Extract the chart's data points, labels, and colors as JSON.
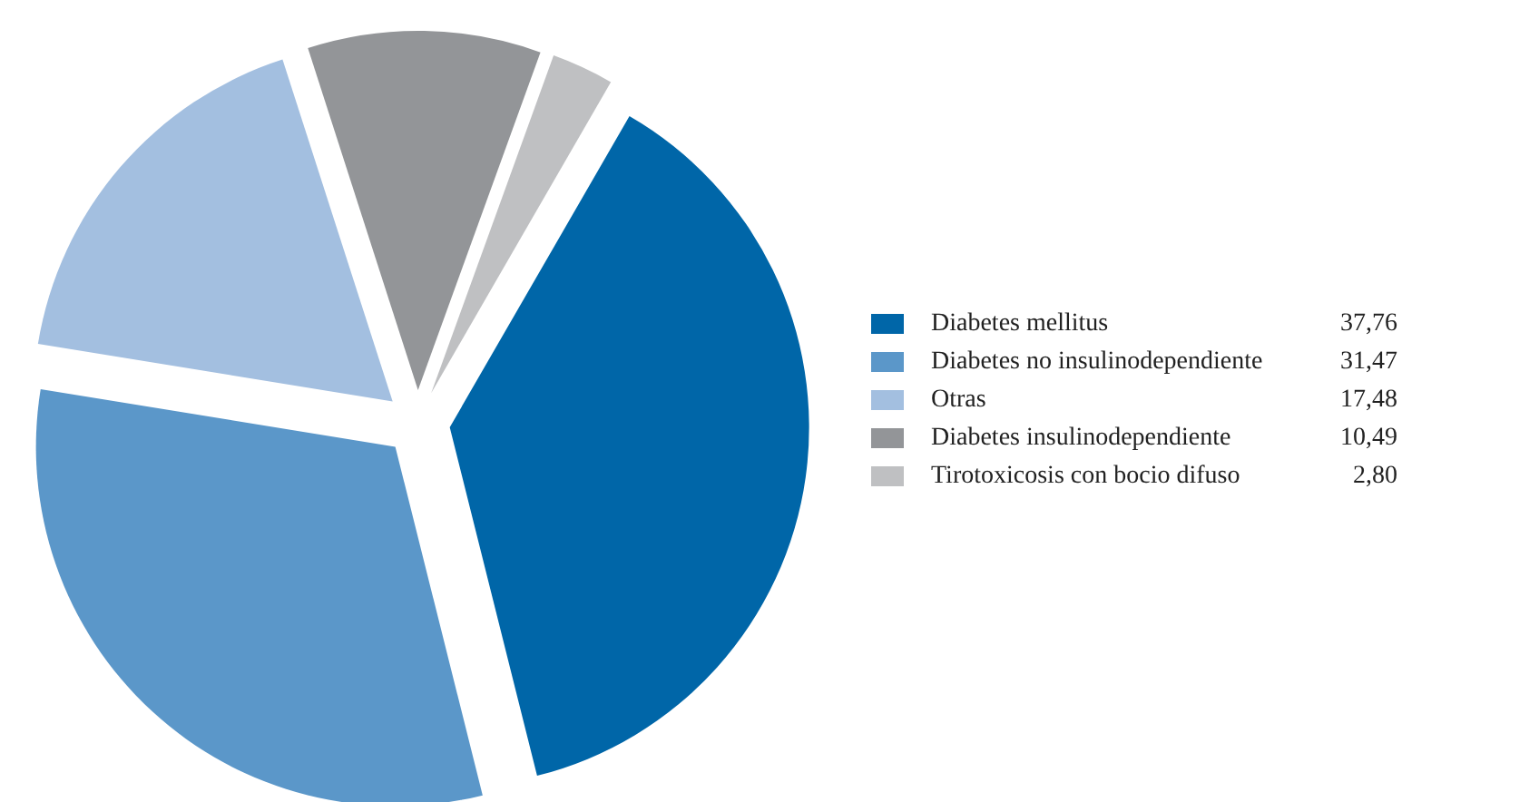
{
  "chart_data": {
    "type": "pie",
    "categories": [
      "Diabetes mellitus",
      "Diabetes no insulinodependiente",
      "Otras",
      "Diabetes insulinodependiente",
      "Tirotoxicosis con bocio difuso"
    ],
    "values": [
      37.76,
      31.47,
      17.48,
      10.49,
      2.8
    ],
    "colors": [
      "#0066a8",
      "#5b97c9",
      "#a3bfe0",
      "#939598",
      "#bfc0c2"
    ],
    "value_labels": [
      "37,76",
      "31,47",
      "17,48",
      "10,49",
      "2,80"
    ],
    "legend": "right"
  }
}
